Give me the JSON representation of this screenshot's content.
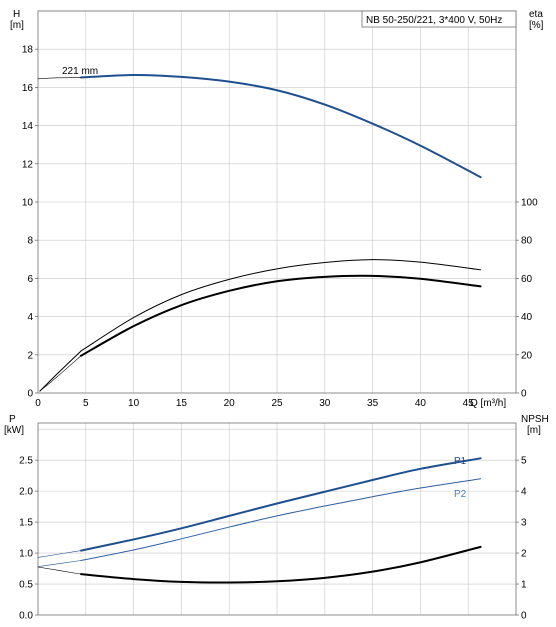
{
  "colors": {
    "blue": "#1f4f8f",
    "black": "#000000",
    "grid": "#c8c8c8"
  },
  "chart_data": [
    {
      "type": "line",
      "title": "NB 50-250/221, 3*400 V, 50Hz",
      "xlabel": "Q [m³/h]",
      "ylabel_left": "H\n[m]",
      "ylabel_right": "eta\n[%]",
      "xlim": [
        0,
        50
      ],
      "ylim_left": [
        0,
        20
      ],
      "ylim_right": [
        0,
        200
      ],
      "x_ticks": [
        "0",
        "5",
        "10",
        "15",
        "20",
        "25",
        "30",
        "35",
        "40",
        "45"
      ],
      "y_ticks_left": [
        "0",
        "2",
        "4",
        "6",
        "8",
        "10",
        "12",
        "14",
        "16",
        "18"
      ],
      "y_ticks_right": [
        "0",
        "20",
        "40",
        "60",
        "80",
        "100"
      ],
      "grid": true,
      "series": [
        {
          "name": "221 mm",
          "axis": "left",
          "color": "blue",
          "width": 2,
          "points": [
            [
              4.5,
              16.52
            ],
            [
              10,
              16.65
            ],
            [
              15,
              16.55
            ],
            [
              20,
              16.3
            ],
            [
              25,
              15.85
            ],
            [
              30,
              15.1
            ],
            [
              35,
              14.1
            ],
            [
              40,
              12.95
            ],
            [
              46.3,
              11.3
            ]
          ]
        },
        {
          "axis": "left",
          "color": "black",
          "width": 1,
          "points": [
            [
              0.2,
              0.1
            ],
            [
              2,
              1.0
            ],
            [
              4.5,
              2.2
            ]
          ]
        },
        {
          "axis": "left",
          "color": "black",
          "width": 0.6,
          "points": [
            [
              0.2,
              0.1
            ],
            [
              2,
              0.85
            ],
            [
              4.5,
              1.95
            ]
          ]
        },
        {
          "axis": "left",
          "color": "black",
          "width": 0.6,
          "points": [
            [
              0,
              16.45
            ],
            [
              2,
              16.5
            ],
            [
              4.5,
              16.52
            ]
          ]
        },
        {
          "axis": "right",
          "color": "black",
          "width": 1,
          "points": [
            [
              4.5,
              22
            ],
            [
              10,
              39.5
            ],
            [
              15,
              51.5
            ],
            [
              20,
              59.5
            ],
            [
              25,
              65
            ],
            [
              30,
              68.3
            ],
            [
              35,
              69.8
            ],
            [
              40,
              68.5
            ],
            [
              46.3,
              64.5
            ]
          ]
        },
        {
          "axis": "right",
          "color": "black",
          "width": 2,
          "points": [
            [
              4.5,
              19.5
            ],
            [
              10,
              35
            ],
            [
              15,
              46
            ],
            [
              20,
              53.5
            ],
            [
              25,
              58.5
            ],
            [
              30,
              60.8
            ],
            [
              35,
              61.3
            ],
            [
              40,
              59.8
            ],
            [
              46.3,
              55.8
            ]
          ]
        }
      ]
    },
    {
      "type": "line",
      "ylabel_left": "P\n[kW]",
      "ylabel_right": "NPSH\n[m]",
      "xlim": [
        0,
        50
      ],
      "ylim_left": [
        0,
        3.1
      ],
      "ylim_right": [
        0,
        6.2
      ],
      "y_ticks_left": [
        "0.0",
        "0.5",
        "1.0",
        "1.5",
        "2.0",
        "2.5"
      ],
      "y_ticks_right": [
        "0",
        "1",
        "2",
        "3",
        "4",
        "5"
      ],
      "grid": true,
      "series": [
        {
          "name": "P1",
          "axis": "left",
          "color": "blue",
          "width": 2,
          "points": [
            [
              4.5,
              1.04
            ],
            [
              10,
              1.22
            ],
            [
              15,
              1.4
            ],
            [
              20,
              1.6
            ],
            [
              25,
              1.8
            ],
            [
              30,
              1.99
            ],
            [
              35,
              2.18
            ],
            [
              40,
              2.36
            ],
            [
              46.3,
              2.53
            ]
          ]
        },
        {
          "name": "P2",
          "axis": "left",
          "color": "blue",
          "width": 1,
          "points": [
            [
              4.5,
              0.88
            ],
            [
              10,
              1.05
            ],
            [
              15,
              1.23
            ],
            [
              20,
              1.42
            ],
            [
              25,
              1.6
            ],
            [
              30,
              1.76
            ],
            [
              35,
              1.91
            ],
            [
              40,
              2.05
            ],
            [
              46.3,
              2.2
            ]
          ]
        },
        {
          "axis": "left",
          "color": "blue",
          "width": 0.6,
          "points": [
            [
              0,
              0.93
            ],
            [
              4.5,
              1.04
            ]
          ]
        },
        {
          "axis": "left",
          "color": "blue",
          "width": 0.6,
          "points": [
            [
              0,
              0.78
            ],
            [
              4.5,
              0.88
            ]
          ]
        },
        {
          "axis": "right",
          "color": "black",
          "width": 2,
          "points": [
            [
              4.5,
              1.32
            ],
            [
              10,
              1.16
            ],
            [
              15,
              1.07
            ],
            [
              20,
              1.05
            ],
            [
              25,
              1.09
            ],
            [
              30,
              1.2
            ],
            [
              35,
              1.4
            ],
            [
              40,
              1.7
            ],
            [
              46.3,
              2.2
            ]
          ]
        },
        {
          "axis": "right",
          "color": "black",
          "width": 0.6,
          "points": [
            [
              0,
              1.55
            ],
            [
              4.5,
              1.32
            ]
          ]
        }
      ]
    }
  ]
}
